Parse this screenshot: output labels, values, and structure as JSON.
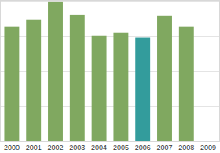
{
  "chart_data": {
    "type": "bar",
    "categories": [
      "2000",
      "2001",
      "2002",
      "2003",
      "2004",
      "2005",
      "2006",
      "2007",
      "2008",
      "2009"
    ],
    "values": [
      3.27,
      3.47,
      3.98,
      3.6,
      3.0,
      3.09,
      2.96,
      3.58,
      3.27,
      null
    ],
    "colors": [
      "#80a860",
      "#80a860",
      "#80a860",
      "#80a860",
      "#80a860",
      "#80a860",
      "#339c9c",
      "#80a860",
      "#80a860",
      "#80a860"
    ],
    "ylim": [
      0,
      4
    ],
    "yticks": [
      0,
      1,
      2,
      3,
      4
    ],
    "grid": true,
    "tick_labels": "x"
  }
}
